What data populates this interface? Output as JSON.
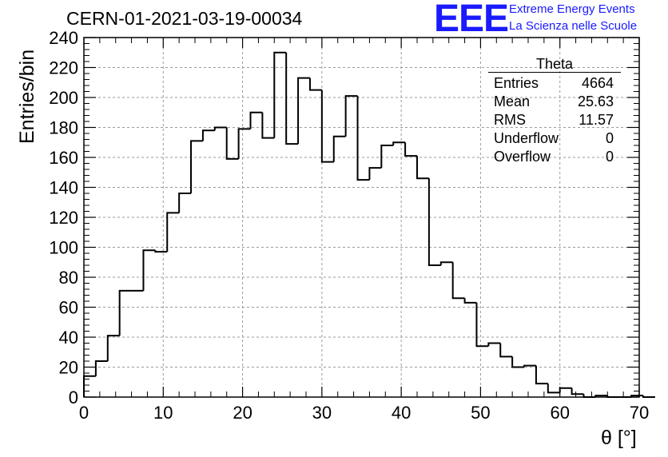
{
  "title": "CERN-01-2021-03-19-00034",
  "logo": {
    "mark": "EEE",
    "line1": "Extreme Energy Events",
    "line2": "La Scienza nelle Scuole",
    "color": "#1a1aff"
  },
  "stats_box": {
    "name": "Theta",
    "rows": [
      {
        "label": "Entries",
        "value": "4664"
      },
      {
        "label": "Mean",
        "value": "25.63"
      },
      {
        "label": "RMS",
        "value": "11.57"
      },
      {
        "label": "Underflow",
        "value": "0"
      },
      {
        "label": "Overflow",
        "value": "0"
      }
    ]
  },
  "chart_data": {
    "type": "histogram",
    "title": "CERN-01-2021-03-19-00034",
    "xlabel": "θ [°]",
    "ylabel": "Entries/bin",
    "xlim": [
      0,
      70
    ],
    "ylim": [
      0,
      240
    ],
    "x_ticks": [
      0,
      10,
      20,
      30,
      40,
      50,
      60,
      70
    ],
    "y_ticks": [
      0,
      20,
      40,
      60,
      80,
      100,
      120,
      140,
      160,
      180,
      200,
      220,
      240
    ],
    "grid": true,
    "bin_width": 1.5,
    "bin_edges_start": 0,
    "values": [
      14,
      24,
      41,
      71,
      71,
      98,
      97,
      123,
      136,
      171,
      178,
      180,
      159,
      179,
      190,
      173,
      230,
      169,
      213,
      205,
      157,
      174,
      201,
      145,
      153,
      168,
      170,
      161,
      146,
      88,
      90,
      66,
      63,
      34,
      36,
      27,
      20,
      21,
      9,
      3,
      6,
      2,
      0,
      1,
      0,
      0,
      1,
      0
    ]
  }
}
